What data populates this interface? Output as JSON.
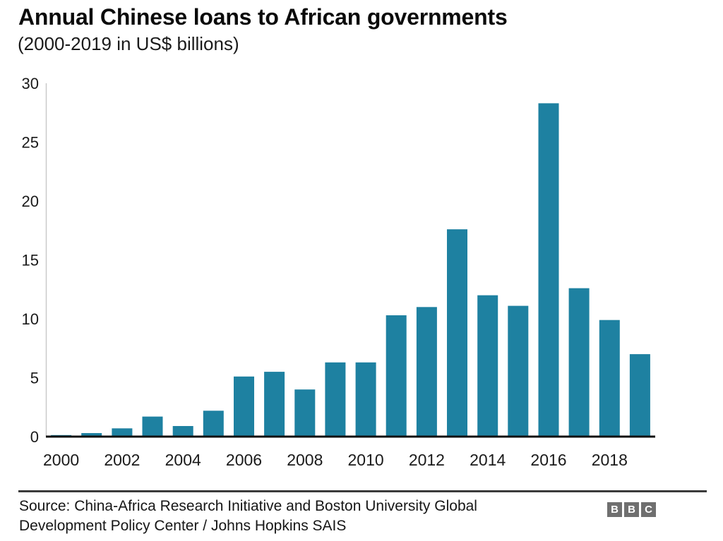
{
  "header": {
    "title": "Annual Chinese loans to African governments",
    "subtitle": "(2000-2019 in US$ billions)"
  },
  "footer": {
    "source_line1": "Source: China-Africa Research Initiative and Boston University Global",
    "source_line2": "Development Policy Center / Johns Hopkins SAIS",
    "logo_letters": [
      "B",
      "B",
      "C"
    ]
  },
  "colors": {
    "bar": "#1e81a1",
    "baseline": "#111111",
    "y_axis_line": "#c9c9c9",
    "axis_text": "#1a1a1a",
    "separator": "#3b3b3b",
    "logo_background": "#6f6f6f",
    "logo_letter": "#ffffff"
  },
  "chart_data": {
    "type": "bar",
    "title": "Annual Chinese loans to African governments",
    "subtitle": "(2000-2019 in US$ billions)",
    "categories": [
      "2000",
      "2001",
      "2002",
      "2003",
      "2004",
      "2005",
      "2006",
      "2007",
      "2008",
      "2009",
      "2010",
      "2011",
      "2012",
      "2013",
      "2014",
      "2015",
      "2016",
      "2017",
      "2018",
      "2019"
    ],
    "values": [
      0.13,
      0.3,
      0.7,
      1.7,
      0.9,
      2.2,
      5.1,
      5.5,
      4.0,
      6.3,
      6.3,
      10.3,
      11.0,
      17.6,
      12.0,
      11.1,
      28.3,
      12.6,
      9.9,
      7.0
    ],
    "xlabel": "",
    "ylabel": "",
    "ylim": [
      0,
      30
    ],
    "yticks": [
      0,
      5,
      10,
      15,
      20,
      25,
      30
    ],
    "xtick_labels": [
      "2000",
      "2002",
      "2004",
      "2006",
      "2008",
      "2010",
      "2012",
      "2014",
      "2016",
      "2018"
    ],
    "grid": false,
    "legend": null
  }
}
